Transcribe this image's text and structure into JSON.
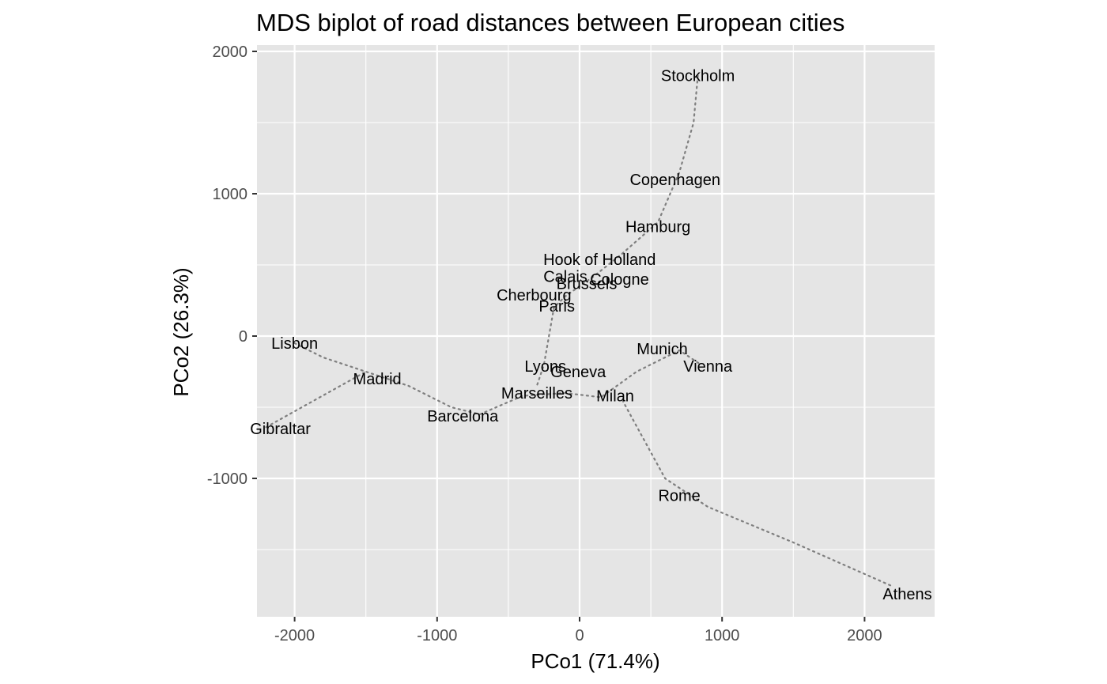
{
  "chart_data": {
    "type": "scatter",
    "title": "MDS biplot of road distances between European cities",
    "xlabel": "PCo1 (71.4%)",
    "ylabel": "PCo2 (26.3%)",
    "xlim": [
      -2250,
      2500
    ],
    "ylim": [
      -1970,
      2030
    ],
    "x_ticks": [
      -2000,
      -1000,
      0,
      1000,
      2000
    ],
    "y_ticks": [
      -1000,
      0,
      1000,
      2000
    ],
    "x_tick_labels": [
      "-2000",
      "-1000",
      "0",
      "1000",
      "2000"
    ],
    "y_tick_labels": [
      "-1000",
      "0",
      "1000",
      "2000"
    ],
    "grid": true,
    "points": [
      {
        "label": "Stockholm",
        "x": 830,
        "y": 1830
      },
      {
        "label": "Copenhagen",
        "x": 670,
        "y": 1100
      },
      {
        "label": "Hamburg",
        "x": 550,
        "y": 770
      },
      {
        "label": "Hook of Holland",
        "x": 140,
        "y": 540
      },
      {
        "label": "Calais",
        "x": -100,
        "y": 420
      },
      {
        "label": "Cologne",
        "x": 280,
        "y": 400
      },
      {
        "label": "Brussels",
        "x": 50,
        "y": 370
      },
      {
        "label": "Cherbourg",
        "x": -320,
        "y": 290
      },
      {
        "label": "Paris",
        "x": -160,
        "y": 210
      },
      {
        "label": "Lisbon",
        "x": -2000,
        "y": -50
      },
      {
        "label": "Munich",
        "x": 580,
        "y": -90
      },
      {
        "label": "Vienna",
        "x": 900,
        "y": -210
      },
      {
        "label": "Lyons",
        "x": -240,
        "y": -210
      },
      {
        "label": "Geneva",
        "x": -10,
        "y": -250
      },
      {
        "label": "Madrid",
        "x": -1420,
        "y": -300
      },
      {
        "label": "Marseilles",
        "x": -300,
        "y": -400
      },
      {
        "label": "Milan",
        "x": 250,
        "y": -420
      },
      {
        "label": "Barcelona",
        "x": -820,
        "y": -560
      },
      {
        "label": "Gibraltar",
        "x": -2100,
        "y": -650
      },
      {
        "label": "Rome",
        "x": 700,
        "y": -1120
      },
      {
        "label": "Athens",
        "x": 2300,
        "y": -1810
      }
    ],
    "paths": [
      [
        [
          830,
          1830
        ],
        [
          800,
          1500
        ],
        [
          700,
          1150
        ],
        [
          550,
          800
        ],
        [
          300,
          580
        ],
        [
          100,
          420
        ],
        [
          -100,
          280
        ],
        [
          -180,
          200
        ],
        [
          -250,
          -200
        ],
        [
          -300,
          -350
        ]
      ],
      [
        [
          -2000,
          -50
        ],
        [
          -1800,
          -150
        ],
        [
          -1500,
          -250
        ],
        [
          -1200,
          -350
        ],
        [
          -900,
          -500
        ],
        [
          -700,
          -550
        ],
        [
          -400,
          -420
        ],
        [
          -100,
          -400
        ],
        [
          150,
          -430
        ],
        [
          400,
          -250
        ],
        [
          700,
          -100
        ],
        [
          850,
          -200
        ]
      ],
      [
        [
          -2200,
          -640
        ],
        [
          -1500,
          -250
        ]
      ],
      [
        [
          300,
          -450
        ],
        [
          600,
          -1000
        ],
        [
          900,
          -1200
        ],
        [
          1500,
          -1450
        ],
        [
          2200,
          -1760
        ]
      ]
    ]
  }
}
